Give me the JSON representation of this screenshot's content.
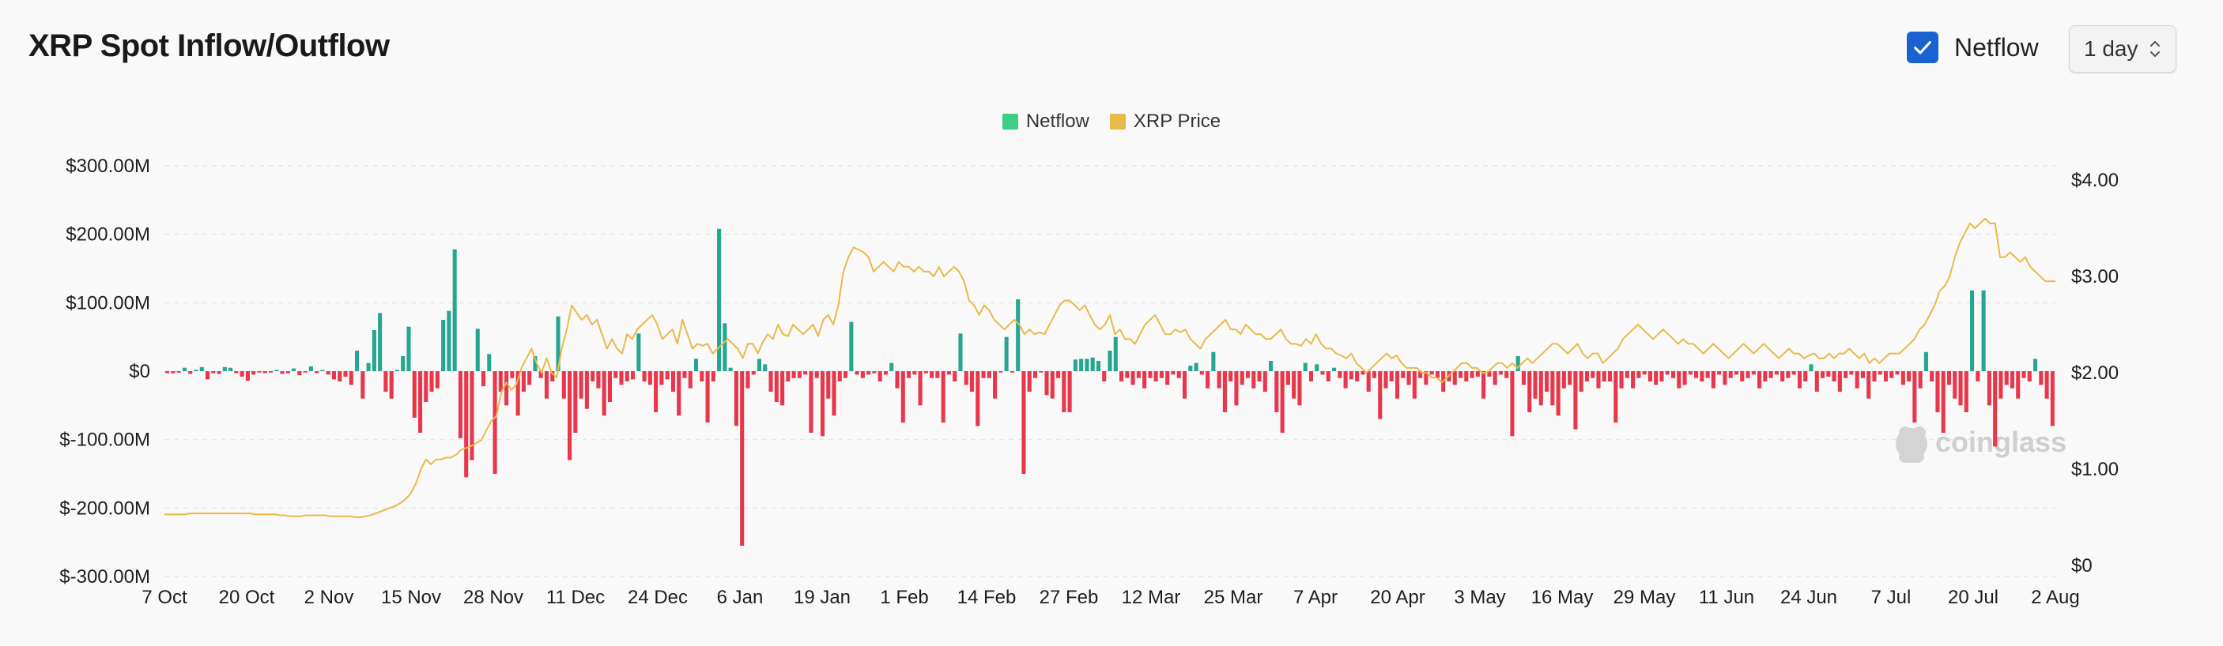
{
  "header": {
    "title": "XRP Spot Inflow/Outflow",
    "netflow_toggle_label": "Netflow",
    "netflow_checked": true,
    "interval_value": "1 day"
  },
  "watermark": "coinglass",
  "colors": {
    "positive": "#26a68f",
    "negative": "#e8374a",
    "price_line": "#e9b949",
    "legend_netflow": "#3ecf84",
    "legend_price": "#e9b949",
    "checkbox": "#1b62d1",
    "gridline": "#e6e6e6"
  },
  "icons": {
    "checkbox": "checkmark-icon",
    "select": "chevron-updown-icon",
    "watermark": "coinglass-logo-icon"
  },
  "chart_data": {
    "type": "bar",
    "legend": [
      {
        "name": "Netflow"
      },
      {
        "name": "XRP Price"
      }
    ],
    "legend_position": "top-center",
    "grid": true,
    "y_left": {
      "ticks": [
        "$300.00M",
        "$200.00M",
        "$100.00M",
        "$0",
        "$-100.00M",
        "$-200.00M",
        "$-300.00M"
      ],
      "range": [
        -300,
        300
      ],
      "unit": "USD millions"
    },
    "y_right": {
      "ticks": [
        "$4.00",
        "$3.00",
        "$2.00",
        "$1.00",
        "$0"
      ],
      "range": [
        0,
        4
      ],
      "unit": "USD"
    },
    "x_ticks": [
      "7 Oct",
      "20 Oct",
      "2 Nov",
      "15 Nov",
      "28 Nov",
      "11 Dec",
      "24 Dec",
      "6 Jan",
      "19 Jan",
      "1 Feb",
      "14 Feb",
      "27 Feb",
      "12 Mar",
      "25 Mar",
      "7 Apr",
      "20 Apr",
      "3 May",
      "16 May",
      "29 May",
      "11 Jun",
      "24 Jun",
      "7 Jul",
      "20 Jul",
      "2 Aug"
    ],
    "netflow_series": {
      "name": "Netflow",
      "unit": "USD millions",
      "start_date": "7 Oct",
      "interval": "1 day",
      "values": [
        -3,
        -3,
        -2,
        5,
        -4,
        2,
        6,
        -12,
        -3,
        -4,
        6,
        5,
        -3,
        -8,
        -14,
        -5,
        -2,
        -3,
        -2,
        2,
        -4,
        -3,
        4,
        -6,
        -2,
        7,
        -3,
        2,
        -5,
        -12,
        -15,
        -8,
        -20,
        30,
        -40,
        12,
        60,
        85,
        -30,
        -40,
        2,
        22,
        65,
        -68,
        -90,
        -45,
        -30,
        -25,
        75,
        88,
        178,
        -98,
        -155,
        -130,
        62,
        -22,
        25,
        -150,
        -30,
        -50,
        -10,
        -65,
        -30,
        -20,
        22,
        -10,
        -40,
        -15,
        80,
        -40,
        -130,
        -90,
        -40,
        -55,
        -15,
        -25,
        -65,
        -45,
        -10,
        -20,
        -15,
        -12,
        55,
        -15,
        -20,
        -60,
        -20,
        -12,
        -30,
        -65,
        -10,
        -25,
        18,
        -15,
        -75,
        -15,
        208,
        70,
        5,
        -80,
        -255,
        -25,
        -5,
        18,
        10,
        -30,
        -45,
        -50,
        -15,
        -10,
        -10,
        -5,
        -90,
        -10,
        -95,
        -40,
        -65,
        -15,
        -10,
        72,
        -5,
        -10,
        -5,
        -3,
        -15,
        -5,
        12,
        -25,
        -75,
        -10,
        -5,
        -50,
        -3,
        -10,
        -10,
        -75,
        -5,
        -15,
        55,
        -20,
        -30,
        -80,
        -10,
        -10,
        -40,
        -2,
        50,
        -2,
        105,
        -150,
        -30,
        -10,
        -2,
        -35,
        -40,
        -10,
        -60,
        -60,
        17,
        18,
        18,
        20,
        15,
        -15,
        30,
        50,
        -15,
        -10,
        -20,
        -10,
        -25,
        -10,
        -15,
        -10,
        -20,
        -5,
        -10,
        -40,
        8,
        12,
        -5,
        -25,
        28,
        -25,
        -60,
        -15,
        -50,
        -20,
        -10,
        -25,
        -15,
        -30,
        15,
        -60,
        -90,
        -20,
        -40,
        -50,
        12,
        -15,
        10,
        -5,
        -15,
        5,
        -10,
        -25,
        -12,
        -15,
        -5,
        -30,
        -10,
        -70,
        -25,
        -15,
        -40,
        -10,
        -20,
        -40,
        -10,
        -20,
        -5,
        -10,
        -30,
        -15,
        -20,
        -10,
        -15,
        -10,
        -8,
        -40,
        -8,
        -20,
        -5,
        -10,
        -95,
        22,
        -20,
        -60,
        -40,
        -50,
        -30,
        -50,
        -65,
        -25,
        -20,
        -85,
        -30,
        -15,
        -10,
        -25,
        -15,
        -15,
        -75,
        -25,
        -10,
        -25,
        -10,
        -5,
        -15,
        -20,
        -15,
        -5,
        -10,
        -25,
        -20,
        -5,
        -10,
        -15,
        -10,
        -25,
        -5,
        -20,
        -10,
        -5,
        -15,
        -10,
        -5,
        -25,
        -15,
        -10,
        -5,
        -15,
        -10,
        -5,
        -25,
        -15,
        10,
        -30,
        -10,
        -8,
        -15,
        -30,
        -10,
        -5,
        -25,
        -10,
        -40,
        -15,
        -5,
        -15,
        -10,
        -5,
        -20,
        -15,
        -75,
        -25,
        28,
        -15,
        -60,
        -90,
        -20,
        -40,
        -50,
        -60,
        118,
        -15,
        118,
        -50,
        -110,
        -40,
        -20,
        -25,
        -40,
        -10,
        -15,
        18,
        -20,
        -40,
        -80
      ],
      "approximate": true
    },
    "price_series": {
      "name": "XRP Price",
      "unit": "USD",
      "start_date": "7 Oct",
      "interval": "1 day",
      "values": [
        0.53,
        0.53,
        0.53,
        0.53,
        0.53,
        0.54,
        0.54,
        0.54,
        0.54,
        0.54,
        0.54,
        0.54,
        0.54,
        0.54,
        0.54,
        0.54,
        0.54,
        0.54,
        0.53,
        0.53,
        0.53,
        0.53,
        0.53,
        0.52,
        0.52,
        0.51,
        0.51,
        0.51,
        0.52,
        0.52,
        0.52,
        0.52,
        0.52,
        0.51,
        0.51,
        0.51,
        0.51,
        0.51,
        0.5,
        0.5,
        0.51,
        0.52,
        0.54,
        0.56,
        0.58,
        0.6,
        0.62,
        0.65,
        0.69,
        0.75,
        0.85,
        1.0,
        1.1,
        1.05,
        1.1,
        1.1,
        1.12,
        1.12,
        1.15,
        1.2,
        1.22,
        1.24,
        1.27,
        1.3,
        1.4,
        1.5,
        1.55,
        1.8,
        1.9,
        1.82,
        1.88,
        2.05,
        2.15,
        2.25,
        2.1,
        2.0,
        2.15,
        2.0,
        1.95,
        2.25,
        2.45,
        2.7,
        2.62,
        2.55,
        2.6,
        2.5,
        2.55,
        2.4,
        2.25,
        2.35,
        2.25,
        2.2,
        2.4,
        2.35,
        2.45,
        2.5,
        2.55,
        2.6,
        2.5,
        2.35,
        2.4,
        2.45,
        2.3,
        2.55,
        2.4,
        2.25,
        2.3,
        2.28,
        2.3,
        2.2,
        2.25,
        2.3,
        2.35,
        2.3,
        2.25,
        2.15,
        2.3,
        2.3,
        2.2,
        2.32,
        2.4,
        2.35,
        2.5,
        2.4,
        2.38,
        2.5,
        2.45,
        2.4,
        2.45,
        2.5,
        2.38,
        2.55,
        2.6,
        2.5,
        2.7,
        3.05,
        3.2,
        3.3,
        3.28,
        3.25,
        3.2,
        3.05,
        3.1,
        3.15,
        3.1,
        3.05,
        3.15,
        3.1,
        3.1,
        3.05,
        3.1,
        3.05,
        3.05,
        3.0,
        3.1,
        3.0,
        3.05,
        3.1,
        3.05,
        2.95,
        2.75,
        2.7,
        2.6,
        2.7,
        2.65,
        2.55,
        2.5,
        2.45,
        2.5,
        2.55,
        2.5,
        2.4,
        2.45,
        2.4,
        2.42,
        2.4,
        2.5,
        2.6,
        2.7,
        2.75,
        2.75,
        2.7,
        2.65,
        2.7,
        2.6,
        2.5,
        2.45,
        2.5,
        2.6,
        2.4,
        2.45,
        2.35,
        2.35,
        2.3,
        2.4,
        2.5,
        2.55,
        2.6,
        2.5,
        2.4,
        2.4,
        2.45,
        2.42,
        2.45,
        2.35,
        2.3,
        2.25,
        2.35,
        2.4,
        2.45,
        2.5,
        2.55,
        2.45,
        2.45,
        2.4,
        2.5,
        2.45,
        2.4,
        2.4,
        2.35,
        2.35,
        2.4,
        2.45,
        2.35,
        2.3,
        2.3,
        2.28,
        2.35,
        2.3,
        2.4,
        2.3,
        2.25,
        2.25,
        2.2,
        2.18,
        2.15,
        2.2,
        2.1,
        2.05,
        2.0,
        2.05,
        2.1,
        2.15,
        2.2,
        2.15,
        2.18,
        2.1,
        2.05,
        2.05,
        2.05,
        2.0,
        2.0,
        1.95,
        1.95,
        1.9,
        1.95,
        2.0,
        2.05,
        2.1,
        2.1,
        2.05,
        2.05,
        2.0,
        2.0,
        2.05,
        2.1,
        2.1,
        2.05,
        2.1,
        2.05,
        2.1,
        2.15,
        2.1,
        2.15,
        2.2,
        2.25,
        2.3,
        2.3,
        2.25,
        2.2,
        2.25,
        2.3,
        2.2,
        2.15,
        2.2,
        2.2,
        2.1,
        2.15,
        2.2,
        2.25,
        2.35,
        2.4,
        2.45,
        2.5,
        2.45,
        2.4,
        2.35,
        2.4,
        2.45,
        2.4,
        2.35,
        2.3,
        2.35,
        2.3,
        2.3,
        2.25,
        2.2,
        2.25,
        2.3,
        2.25,
        2.2,
        2.15,
        2.2,
        2.25,
        2.3,
        2.25,
        2.2,
        2.25,
        2.3,
        2.25,
        2.2,
        2.15,
        2.2,
        2.25,
        2.2,
        2.2,
        2.15,
        2.18,
        2.2,
        2.15,
        2.15,
        2.2,
        2.15,
        2.2,
        2.2,
        2.25,
        2.2,
        2.15,
        2.2,
        2.1,
        2.15,
        2.1,
        2.15,
        2.2,
        2.2,
        2.2,
        2.25,
        2.3,
        2.35,
        2.45,
        2.5,
        2.6,
        2.7,
        2.85,
        2.9,
        3.0,
        3.2,
        3.35,
        3.45,
        3.55,
        3.5,
        3.55,
        3.6,
        3.55,
        3.55,
        3.2,
        3.2,
        3.25,
        3.2,
        3.15,
        3.2,
        3.1,
        3.05,
        3.0,
        2.95,
        2.95,
        2.95
      ]
    }
  }
}
